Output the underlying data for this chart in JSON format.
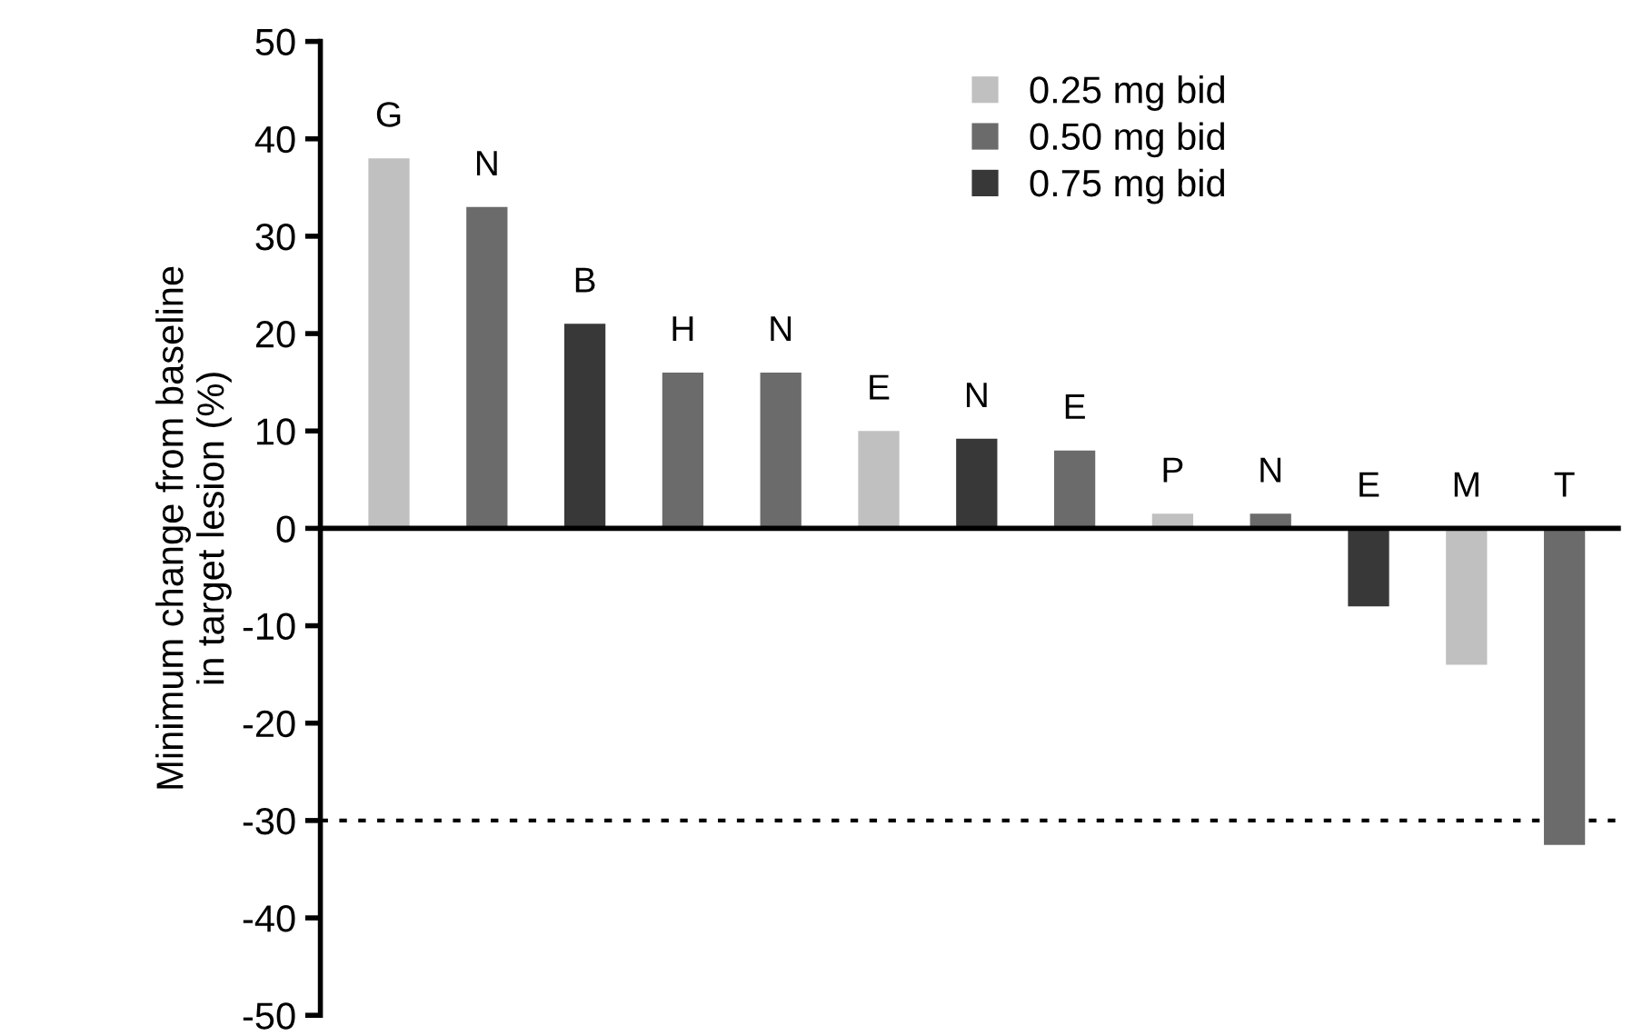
{
  "chart_data": {
    "type": "bar",
    "ylabel": "Minimum change from baseline\nin target lesion (%)",
    "categories": [
      "G",
      "N",
      "B",
      "H",
      "N",
      "E",
      "N",
      "E",
      "P",
      "N",
      "E",
      "M",
      "T"
    ],
    "series": [
      {
        "name": "0.25 mg bid",
        "color": "#c0c0c0",
        "values": [
          38,
          null,
          null,
          null,
          null,
          10,
          null,
          null,
          1.5,
          null,
          null,
          -14,
          null
        ]
      },
      {
        "name": "0.50 mg bid",
        "color": "#6b6b6b",
        "values": [
          null,
          33,
          null,
          16,
          16,
          null,
          null,
          8,
          null,
          1.5,
          null,
          null,
          -32.5
        ]
      },
      {
        "name": "0.75 mg bid",
        "color": "#383838",
        "values": [
          null,
          null,
          21,
          null,
          null,
          null,
          9.2,
          null,
          null,
          null,
          -8,
          null,
          null
        ]
      }
    ],
    "ylim": [
      -50,
      50
    ],
    "yticks": [
      -50,
      -40,
      -30,
      -20,
      -10,
      0,
      10,
      20,
      30,
      40,
      50
    ],
    "ref_lines": [
      {
        "axis": "y",
        "value": -30,
        "color": "#000000",
        "line_style": "dotted"
      }
    ],
    "legend": "top",
    "grid": false
  }
}
